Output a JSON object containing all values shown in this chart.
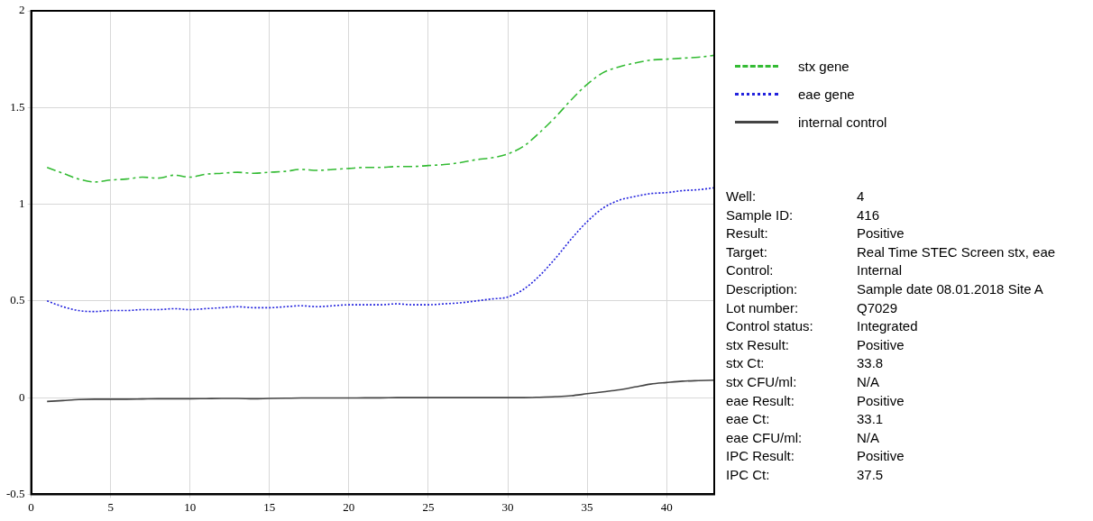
{
  "chart_data": {
    "type": "line",
    "x": [
      1,
      2,
      3,
      4,
      5,
      6,
      7,
      8,
      9,
      10,
      11,
      12,
      13,
      14,
      15,
      16,
      17,
      18,
      19,
      20,
      21,
      22,
      23,
      24,
      25,
      26,
      27,
      28,
      29,
      30,
      31,
      32,
      33,
      34,
      35,
      36,
      37,
      38,
      39,
      40,
      41,
      42,
      43
    ],
    "series": [
      {
        "name": "stx gene",
        "color": "#33bb33",
        "line_style": "dashed",
        "values": [
          1.19,
          1.16,
          1.13,
          1.115,
          1.125,
          1.13,
          1.14,
          1.135,
          1.15,
          1.14,
          1.155,
          1.16,
          1.165,
          1.16,
          1.165,
          1.17,
          1.18,
          1.175,
          1.18,
          1.185,
          1.19,
          1.19,
          1.195,
          1.195,
          1.2,
          1.205,
          1.215,
          1.23,
          1.24,
          1.26,
          1.3,
          1.37,
          1.45,
          1.54,
          1.62,
          1.68,
          1.71,
          1.73,
          1.745,
          1.75,
          1.755,
          1.76,
          1.77
        ]
      },
      {
        "name": "eae gene",
        "color": "#2222dd",
        "line_style": "dotted",
        "values": [
          0.5,
          0.47,
          0.45,
          0.445,
          0.45,
          0.45,
          0.455,
          0.455,
          0.46,
          0.455,
          0.46,
          0.465,
          0.47,
          0.465,
          0.465,
          0.47,
          0.475,
          0.47,
          0.475,
          0.48,
          0.48,
          0.48,
          0.485,
          0.48,
          0.48,
          0.485,
          0.49,
          0.5,
          0.51,
          0.52,
          0.56,
          0.63,
          0.72,
          0.82,
          0.91,
          0.98,
          1.02,
          1.04,
          1.055,
          1.06,
          1.07,
          1.075,
          1.085
        ]
      },
      {
        "name": "internal control",
        "color": "#444444",
        "line_style": "solid",
        "values": [
          -0.02,
          -0.015,
          -0.01,
          -0.008,
          -0.008,
          -0.008,
          -0.007,
          -0.006,
          -0.006,
          -0.006,
          -0.005,
          -0.004,
          -0.004,
          -0.006,
          -0.004,
          -0.003,
          -0.002,
          -0.002,
          -0.002,
          -0.002,
          -0.001,
          -0.001,
          0,
          0,
          0,
          0,
          0,
          0,
          0,
          0,
          0,
          0.002,
          0.005,
          0.01,
          0.02,
          0.03,
          0.04,
          0.055,
          0.07,
          0.078,
          0.085,
          0.088,
          0.09
        ]
      }
    ],
    "xlim": [
      0,
      43
    ],
    "xticks": [
      0,
      5,
      10,
      15,
      20,
      25,
      30,
      35,
      40
    ],
    "ylim": [
      -0.5,
      2
    ],
    "yticks": [
      -0.5,
      0,
      0.5,
      1,
      1.5,
      2
    ],
    "grid": true,
    "legend": "right",
    "marker": "none",
    "annotations": [
      "Well:",
      "4",
      "Sample ID:",
      "416",
      "Result:",
      "Positive",
      "Target:",
      "Real Time STEC Screen stx, eae",
      "Control:",
      "Internal",
      "Description:",
      "Sample date 08.01.2018 Site A",
      "Lot number:",
      "Q7029",
      "Control status:",
      "Integrated",
      "stx Result:",
      "Positive",
      "stx Ct:",
      "33.8",
      "stx CFU/ml:",
      "N/A",
      "eae Result:",
      "Positive",
      "eae Ct:",
      "33.1",
      "eae CFU/ml:",
      "N/A",
      "IPC Result:",
      "Positive",
      "IPC Ct:",
      "37.5"
    ]
  }
}
